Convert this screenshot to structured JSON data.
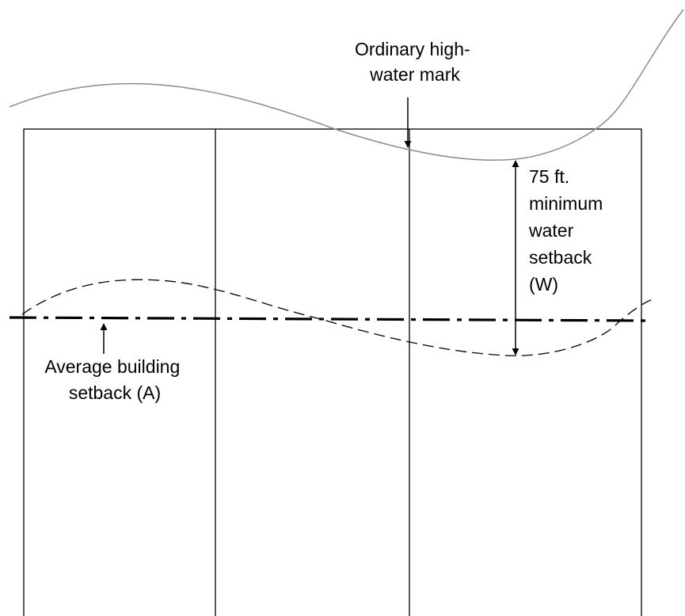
{
  "labels": {
    "high_water_mark": [
      "Ordinary high-",
      "water mark"
    ],
    "water_setback": [
      "75 ft.",
      "minimum",
      "water",
      "setback",
      "(W)"
    ],
    "building_setback": [
      "Average building",
      "setback (A)"
    ]
  },
  "colors": {
    "background": "#ffffff",
    "lot_lines": "#000000",
    "shoreline": "#8c8c8c",
    "water_setback_line": "#000000",
    "building_setback_line": "#000000",
    "label_text": "#000000"
  },
  "line_styles": {
    "shoreline": "solid",
    "water_setback_line": "dashed",
    "building_setback_line": "dash-dot"
  },
  "lots": {
    "count": 3
  }
}
